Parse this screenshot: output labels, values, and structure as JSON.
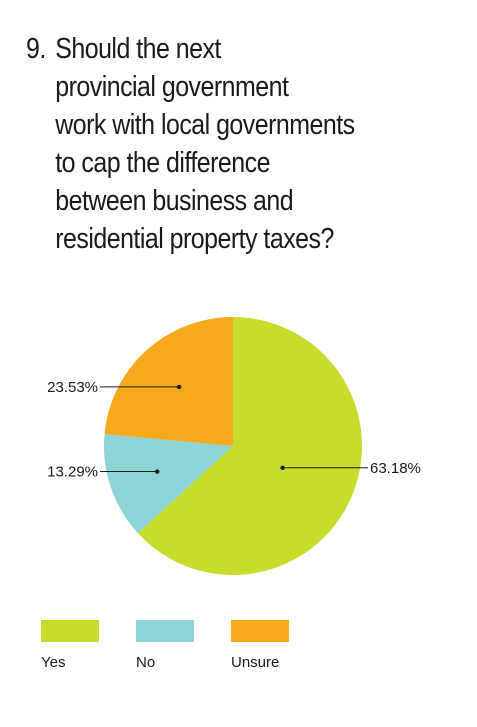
{
  "question": {
    "number": "9.",
    "text": "Should the next\nprovincial government\nwork with local governments\nto cap the difference\nbetween business and\nresidential property taxes?"
  },
  "chart_data": {
    "type": "pie",
    "categories": [
      "Yes",
      "No",
      "Unsure"
    ],
    "values": [
      63.18,
      13.29,
      23.53
    ],
    "data_labels": [
      "63.18%",
      "13.29%",
      "23.53%"
    ],
    "colors": [
      "#c8dc2c",
      "#8ed3d6",
      "#f7a81b"
    ],
    "legend": {
      "placement": "bottom"
    }
  },
  "legend": [
    {
      "label": "Yes",
      "color": "#c8dc2c"
    },
    {
      "label": "No",
      "color": "#8ed3d6"
    },
    {
      "label": "Unsure",
      "color": "#f7a81b"
    }
  ]
}
